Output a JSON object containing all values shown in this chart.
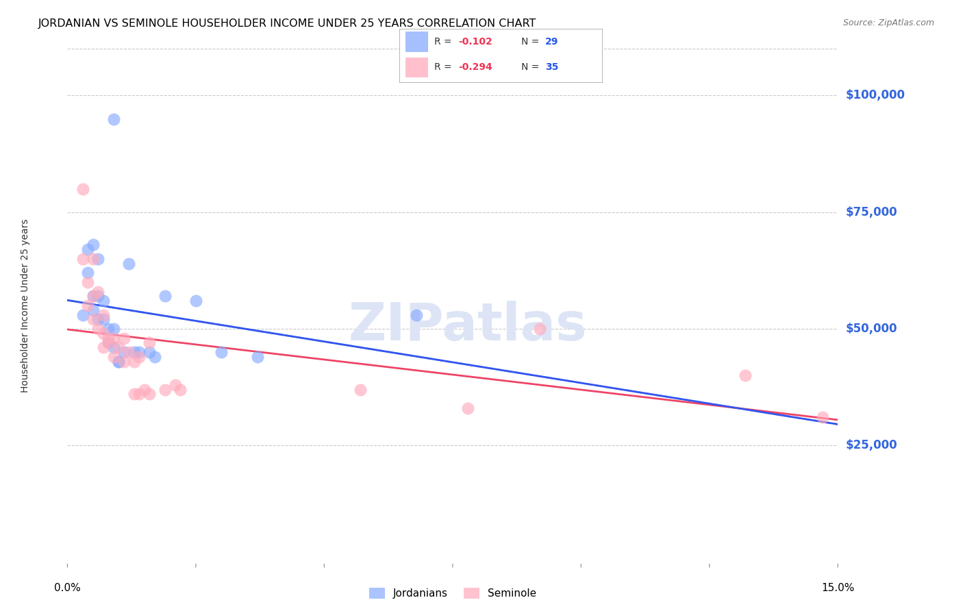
{
  "title": "JORDANIAN VS SEMINOLE HOUSEHOLDER INCOME UNDER 25 YEARS CORRELATION CHART",
  "source": "Source: ZipAtlas.com",
  "ylabel": "Householder Income Under 25 years",
  "xlim": [
    0.0,
    0.15
  ],
  "ylim": [
    0,
    110000
  ],
  "yticks": [
    25000,
    50000,
    75000,
    100000
  ],
  "ytick_labels": [
    "$25,000",
    "$50,000",
    "$75,000",
    "$100,000"
  ],
  "background_color": "#ffffff",
  "grid_color": "#c8c8d0",
  "blue_color": "#88aaff",
  "pink_color": "#ffaabc",
  "blue_line_color": "#3355ee",
  "pink_line_color": "#ee4466",
  "dashed_line_color": "#99bbff",
  "jordanian_x": [
    0.003,
    0.004,
    0.004,
    0.005,
    0.005,
    0.005,
    0.006,
    0.006,
    0.006,
    0.007,
    0.007,
    0.008,
    0.008,
    0.009,
    0.009,
    0.01,
    0.01,
    0.011,
    0.012,
    0.013,
    0.014,
    0.016,
    0.017,
    0.019,
    0.025,
    0.03,
    0.037,
    0.068,
    0.009
  ],
  "jordanian_y": [
    53000,
    67000,
    62000,
    68000,
    57000,
    54000,
    65000,
    57000,
    52000,
    56000,
    52000,
    50000,
    47000,
    50000,
    46000,
    43000,
    43000,
    45000,
    64000,
    45000,
    45000,
    45000,
    44000,
    57000,
    56000,
    45000,
    44000,
    53000,
    95000
  ],
  "seminole_x": [
    0.003,
    0.003,
    0.004,
    0.004,
    0.005,
    0.005,
    0.005,
    0.006,
    0.006,
    0.007,
    0.007,
    0.007,
    0.008,
    0.008,
    0.009,
    0.009,
    0.01,
    0.011,
    0.011,
    0.012,
    0.013,
    0.013,
    0.014,
    0.014,
    0.015,
    0.016,
    0.016,
    0.019,
    0.021,
    0.022,
    0.057,
    0.078,
    0.092,
    0.132,
    0.147
  ],
  "seminole_y": [
    80000,
    65000,
    60000,
    55000,
    65000,
    57000,
    52000,
    58000,
    50000,
    53000,
    49000,
    46000,
    48000,
    47000,
    48000,
    44000,
    46000,
    48000,
    43000,
    45000,
    43000,
    36000,
    36000,
    44000,
    37000,
    47000,
    36000,
    37000,
    38000,
    37000,
    37000,
    33000,
    50000,
    40000,
    31000
  ],
  "watermark": "ZIPatlas",
  "watermark_color": "#dde4f5",
  "title_fontsize": 11.5,
  "source_fontsize": 9,
  "axis_label_fontsize": 10,
  "tick_fontsize": 11,
  "legend_fontsize": 11,
  "xlabel_ticks": [
    0.0,
    0.025,
    0.05,
    0.075,
    0.1,
    0.125,
    0.15
  ],
  "xlabel_tick_labels": [
    "0.0%",
    "",
    "",
    "",
    "",
    "",
    "15.0%"
  ]
}
